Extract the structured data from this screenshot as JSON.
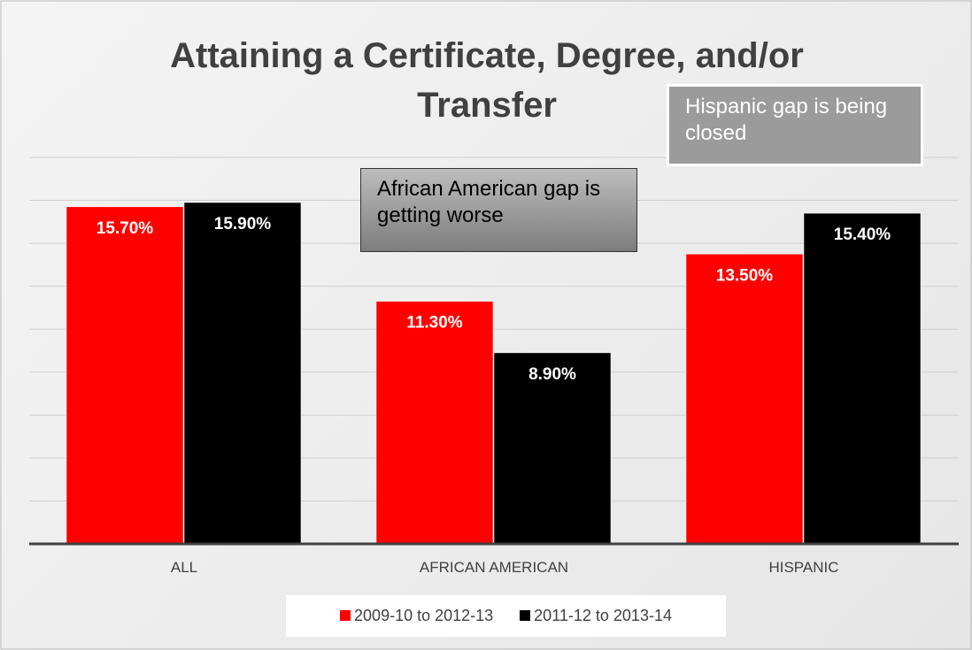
{
  "chart_data": {
    "type": "bar",
    "title": "Attaining a Certificate, Degree, and/or Transfer",
    "categories": [
      "ALL",
      "AFRICAN AMERICAN",
      "HISPANIC"
    ],
    "series": [
      {
        "name": "2009-10 to 2012-13",
        "color": "#ff0000",
        "values": [
          15.7,
          11.3,
          13.5
        ],
        "value_labels": [
          "15.70%",
          "11.30%",
          "13.50%"
        ]
      },
      {
        "name": "2011-12 to 2013-14",
        "color": "#000000",
        "values": [
          15.9,
          8.9,
          15.4
        ],
        "value_labels": [
          "15.90%",
          "8.90%",
          "15.40%"
        ]
      }
    ],
    "ylim": [
      0,
      18
    ],
    "yticks": [
      0,
      2,
      4,
      6,
      8,
      10,
      12,
      14,
      16,
      18
    ],
    "grid": true,
    "annotations": [
      "African American  gap is getting worse",
      "Hispanic gap is being closed"
    ]
  }
}
